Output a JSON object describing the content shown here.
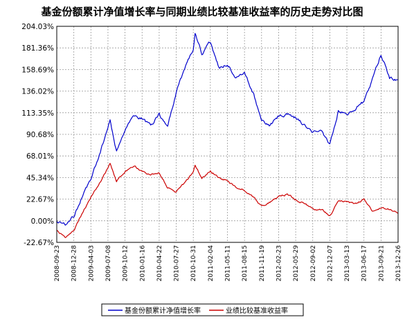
{
  "chart_data": {
    "type": "line",
    "title": "基金份额累计净值增长率与同期业绩比较基准收益率的历史走势对比图",
    "xlabel": "",
    "ylabel": "",
    "y_unit": "%",
    "ylim": [
      -22.67,
      204.03
    ],
    "y_ticks": [
      "204.03%",
      "181.36%",
      "158.69%",
      "136.02%",
      "113.35%",
      "90.68%",
      "68.01%",
      "45.34%",
      "22.67%",
      "0.00%",
      "-22.67%"
    ],
    "x_ticks": [
      "2008-09-23",
      "2008-12-28",
      "2009-04-03",
      "2009-07-08",
      "2009-10-12",
      "2010-01-16",
      "2010-04-22",
      "2010-07-27",
      "2010-10-31",
      "2011-02-04",
      "2011-05-11",
      "2011-08-15",
      "2011-11-19",
      "2012-02-23",
      "2012-05-29",
      "2012-09-02",
      "2012-12-07",
      "2013-03-13",
      "2013-06-17",
      "2013-09-21",
      "2013-12-26"
    ],
    "grid": true,
    "legend_position": "bottom",
    "colors": {
      "fund": "#0000cc",
      "benchmark": "#cc0000"
    },
    "series": [
      {
        "name": "基金份额累计净值增长率",
        "x": [
          "2008-09-23",
          "2008-11-10",
          "2008-12-28",
          "2009-02-14",
          "2009-04-03",
          "2009-05-21",
          "2009-07-08",
          "2009-07-20",
          "2009-08-25",
          "2009-10-12",
          "2009-11-29",
          "2010-01-16",
          "2010-03-05",
          "2010-04-22",
          "2010-06-09",
          "2010-07-27",
          "2010-09-13",
          "2010-10-31",
          "2010-11-10",
          "2010-12-18",
          "2011-02-04",
          "2011-03-24",
          "2011-05-11",
          "2011-06-28",
          "2011-08-15",
          "2011-10-02",
          "2011-11-19",
          "2012-01-06",
          "2012-02-23",
          "2012-04-11",
          "2012-05-29",
          "2012-07-16",
          "2012-09-02",
          "2012-10-20",
          "2012-12-07",
          "2013-01-24",
          "2013-03-13",
          "2013-04-30",
          "2013-06-17",
          "2013-08-04",
          "2013-09-21",
          "2013-11-08",
          "2013-12-26"
        ],
        "values": [
          0.0,
          -4.0,
          5.0,
          25.0,
          45.0,
          70.0,
          98.0,
          106.0,
          72.0,
          95.0,
          110.0,
          108.0,
          100.0,
          112.0,
          98.0,
          135.0,
          160.0,
          180.0,
          198.0,
          175.0,
          188.0,
          160.0,
          165.0,
          150.0,
          155.0,
          135.0,
          105.0,
          100.0,
          110.0,
          112.0,
          108.0,
          100.0,
          92.0,
          95.0,
          80.0,
          115.0,
          112.0,
          118.0,
          125.0,
          148.0,
          175.0,
          150.0,
          148.0
        ]
      },
      {
        "name": "业绩比较基准收益率",
        "x": [
          "2008-09-23",
          "2008-11-10",
          "2008-12-28",
          "2009-02-14",
          "2009-04-03",
          "2009-05-21",
          "2009-07-08",
          "2009-07-20",
          "2009-08-25",
          "2009-10-12",
          "2009-11-29",
          "2010-01-16",
          "2010-03-05",
          "2010-04-22",
          "2010-06-09",
          "2010-07-27",
          "2010-09-13",
          "2010-10-31",
          "2010-11-10",
          "2010-12-18",
          "2011-02-04",
          "2011-03-24",
          "2011-05-11",
          "2011-06-28",
          "2011-08-15",
          "2011-10-02",
          "2011-11-19",
          "2012-01-06",
          "2012-02-23",
          "2012-04-11",
          "2012-05-29",
          "2012-07-16",
          "2012-09-02",
          "2012-10-20",
          "2012-12-07",
          "2013-01-24",
          "2013-03-13",
          "2013-04-30",
          "2013-06-17",
          "2013-08-04",
          "2013-09-21",
          "2013-11-08",
          "2013-12-26"
        ],
        "values": [
          -10.0,
          -18.0,
          -10.0,
          8.0,
          25.0,
          40.0,
          55.0,
          60.0,
          42.0,
          52.0,
          58.0,
          52.0,
          48.0,
          50.0,
          35.0,
          30.0,
          40.0,
          52.0,
          58.0,
          45.0,
          52.0,
          45.0,
          42.0,
          35.0,
          32.0,
          25.0,
          15.0,
          20.0,
          25.0,
          28.0,
          22.0,
          18.0,
          12.0,
          12.0,
          5.0,
          20.0,
          20.0,
          18.0,
          22.0,
          10.0,
          14.0,
          12.0,
          8.0
        ]
      }
    ]
  }
}
